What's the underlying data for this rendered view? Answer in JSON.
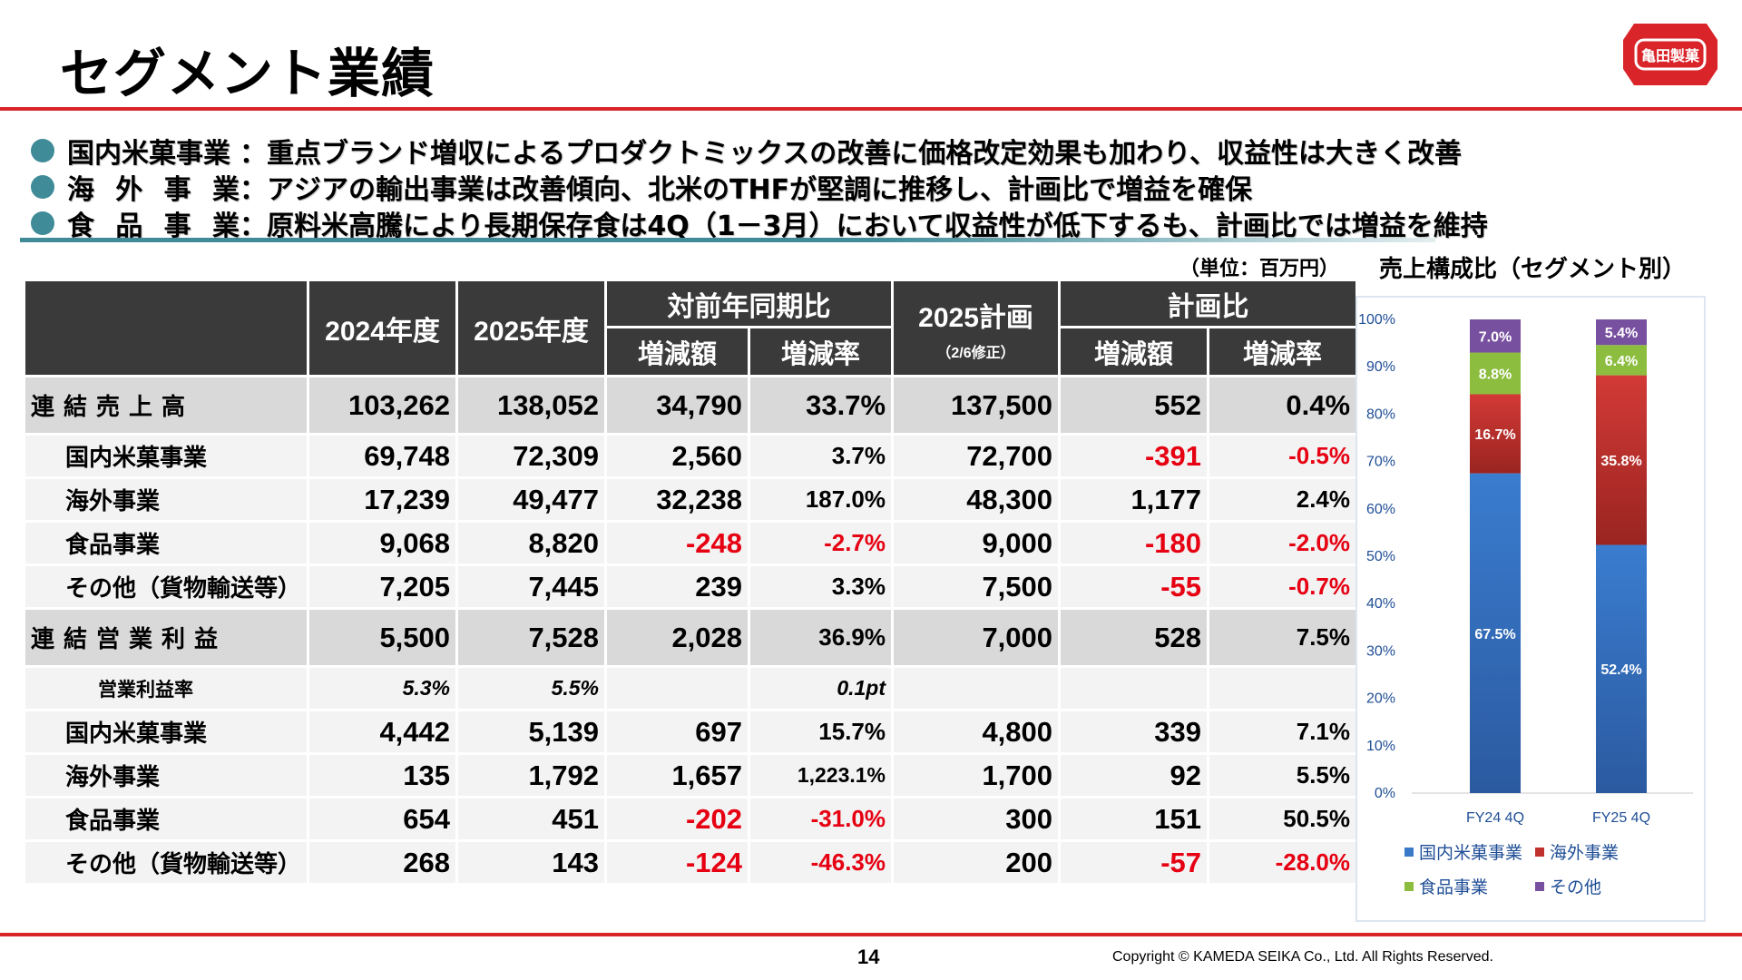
{
  "title": "セグメント業績",
  "logo_text": "亀田製菓",
  "bullets": [
    {
      "label": "国内米菓事業",
      "chars": [],
      "text": "：重点ブランド増収によるプロダクトミックスの改善に価格改定効果も加わり、収益性は大きく改善"
    },
    {
      "label": "",
      "chars": [
        "海",
        "外",
        "事",
        "業"
      ],
      "text": "：アジアの輸出事業は改善傾向、北米のTHFが堅調に推移し、計画比で増益を確保"
    },
    {
      "label": "",
      "chars": [
        "食",
        "品",
        "事",
        "業"
      ],
      "text": "：原料米高騰により長期保存食は4Q（1－3月）において収益性が低下するも、計画比では増益を維持"
    }
  ],
  "unit": "（単位：百万円）",
  "table": {
    "headers": {
      "fy2024": "2024年度",
      "fy2025": "2025年度",
      "yoy": "対前年同期比",
      "yoy_amount": "増減額",
      "yoy_rate": "増減率",
      "plan": "2025計画",
      "plan_note": "（2/6修正）",
      "vs_plan": "計画比",
      "plan_amount": "増減額",
      "plan_rate": "増減率"
    },
    "rows": [
      {
        "label": "連結売上高",
        "fy2024": "103,262",
        "fy2025": "138,052",
        "yoy_amount": "34,790",
        "yoy_rate": "33.7%",
        "plan": "137,500",
        "plan_amount": "552",
        "plan_rate": "0.4%"
      },
      {
        "label": "国内米菓事業",
        "fy2024": "69,748",
        "fy2025": "72,309",
        "yoy_amount": "2,560",
        "yoy_rate": "3.7%",
        "plan": "72,700",
        "plan_amount": "-391",
        "plan_rate": "-0.5%"
      },
      {
        "label": "海外事業",
        "fy2024": "17,239",
        "fy2025": "49,477",
        "yoy_amount": "32,238",
        "yoy_rate": "187.0%",
        "plan": "48,300",
        "plan_amount": "1,177",
        "plan_rate": "2.4%"
      },
      {
        "label": "食品事業",
        "fy2024": "9,068",
        "fy2025": "8,820",
        "yoy_amount": "-248",
        "yoy_rate": "-2.7%",
        "plan": "9,000",
        "plan_amount": "-180",
        "plan_rate": "-2.0%"
      },
      {
        "label": "その他（貨物輸送等）",
        "fy2024": "7,205",
        "fy2025": "7,445",
        "yoy_amount": "239",
        "yoy_rate": "3.3%",
        "plan": "7,500",
        "plan_amount": "-55",
        "plan_rate": "-0.7%"
      },
      {
        "label": "連結営業利益",
        "fy2024": "5,500",
        "fy2025": "7,528",
        "yoy_amount": "2,028",
        "yoy_rate": "36.9%",
        "plan": "7,000",
        "plan_amount": "528",
        "plan_rate": "7.5%"
      },
      {
        "label": "営業利益率",
        "fy2024": "5.3%",
        "fy2025": "5.5%",
        "yoy_amount": "",
        "yoy_rate": "0.1pt",
        "plan": "",
        "plan_amount": "",
        "plan_rate": ""
      },
      {
        "label": "国内米菓事業",
        "fy2024": "4,442",
        "fy2025": "5,139",
        "yoy_amount": "697",
        "yoy_rate": "15.7%",
        "plan": "4,800",
        "plan_amount": "339",
        "plan_rate": "7.1%"
      },
      {
        "label": "海外事業",
        "fy2024": "135",
        "fy2025": "1,792",
        "yoy_amount": "1,657",
        "yoy_rate": "1,223.1%",
        "plan": "1,700",
        "plan_amount": "92",
        "plan_rate": "5.5%"
      },
      {
        "label": "食品事業",
        "fy2024": "654",
        "fy2025": "451",
        "yoy_amount": "-202",
        "yoy_rate": "-31.0%",
        "plan": "300",
        "plan_amount": "151",
        "plan_rate": "50.5%"
      },
      {
        "label": "その他（貨物輸送等）",
        "fy2024": "268",
        "fy2025": "143",
        "yoy_amount": "-124",
        "yoy_rate": "-46.3%",
        "plan": "200",
        "plan_amount": "-57",
        "plan_rate": "-28.0%"
      }
    ]
  },
  "chart_title": "売上構成比（セグメント別）",
  "chart_data": {
    "type": "bar",
    "stacked": true,
    "categories": [
      "FY24 4Q",
      "FY25 4Q"
    ],
    "series": [
      {
        "name": "国内米菓事業",
        "color": "#3a78c8",
        "values": [
          67.5,
          52.4
        ],
        "labels": [
          "67.5%",
          "52.4%"
        ]
      },
      {
        "name": "海外事業",
        "color": "#c0302d",
        "values": [
          16.7,
          35.8
        ],
        "labels": [
          "16.7%",
          "35.8%"
        ]
      },
      {
        "name": "食品事業",
        "color": "#8cbd3f",
        "values": [
          8.8,
          6.4
        ],
        "labels": [
          "8.8%",
          "6.4%"
        ]
      },
      {
        "name": "その他",
        "color": "#7850a0",
        "values": [
          7.0,
          5.4
        ],
        "labels": [
          "7.0%",
          "5.4%"
        ]
      }
    ],
    "ylim": [
      0,
      100
    ],
    "yticks": [
      "0%",
      "10%",
      "20%",
      "30%",
      "40%",
      "50%",
      "60%",
      "70%",
      "80%",
      "90%",
      "100%"
    ],
    "legend": "bottom"
  },
  "page_number": "14",
  "copyright": "Copyright ©  KAMEDA SEIKA Co., Ltd. All Rights Reserved.",
  "colors": {
    "brand_red": "#d9252a",
    "teal": "#3f8b98",
    "negative": "#e60012",
    "header_bg": "#3a3a3a"
  }
}
